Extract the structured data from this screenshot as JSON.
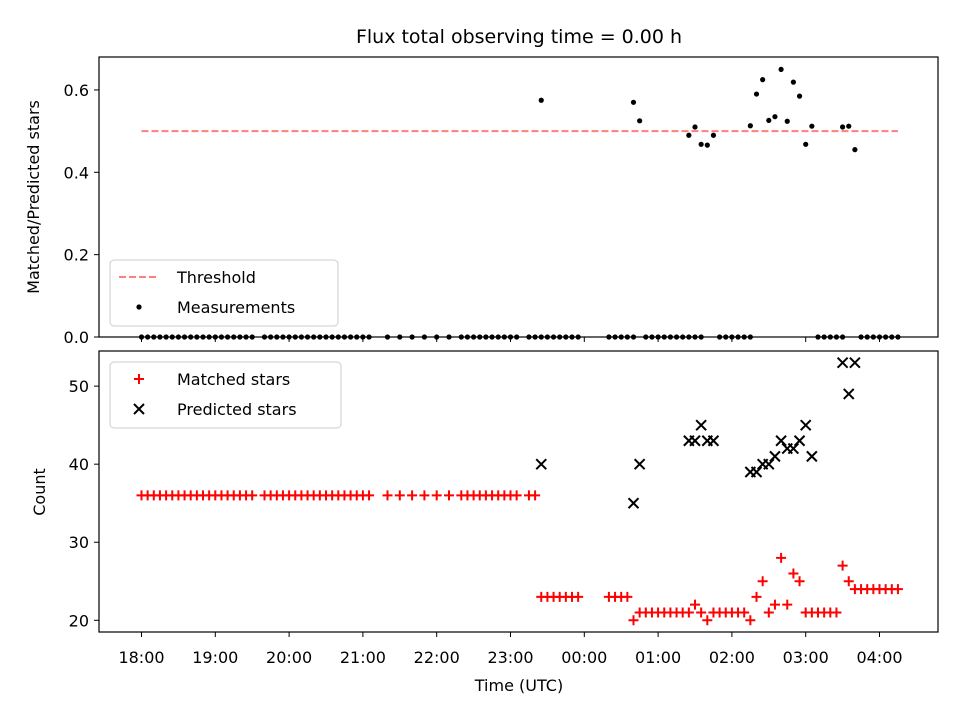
{
  "figure": {
    "title": "Flux total observing time = 0.00 h",
    "xlabel": "Time (UTC)",
    "xticks": [
      "18:00",
      "19:00",
      "20:00",
      "21:00",
      "22:00",
      "23:00",
      "00:00",
      "01:00",
      "02:00",
      "03:00",
      "04:00"
    ]
  },
  "chart_data": [
    {
      "type": "scatter",
      "panel": "top",
      "ylabel": "Matched/Predicted stars",
      "ylim": [
        0,
        0.68
      ],
      "yticks": [
        "0.0",
        "0.2",
        "0.4",
        "0.6"
      ],
      "ytick_values": [
        0,
        0.2,
        0.4,
        0.6
      ],
      "legend": {
        "placement": "lower-left",
        "entries": [
          "Threshold",
          "Measurements"
        ]
      },
      "threshold": {
        "name": "Threshold",
        "y": 0.5,
        "x_start": "18:00",
        "x_end": "04:15",
        "color": "#ff7f7f"
      },
      "series": [
        {
          "name": "Measurements",
          "color": "#000000",
          "zero_times": [
            "18:00",
            "18:05",
            "18:10",
            "18:15",
            "18:20",
            "18:25",
            "18:30",
            "18:35",
            "18:40",
            "18:45",
            "18:50",
            "18:55",
            "19:00",
            "19:05",
            "19:10",
            "19:15",
            "19:20",
            "19:25",
            "19:30",
            "19:40",
            "19:45",
            "19:50",
            "19:55",
            "20:00",
            "20:05",
            "20:10",
            "20:15",
            "20:20",
            "20:25",
            "20:30",
            "20:35",
            "20:40",
            "20:45",
            "20:50",
            "20:55",
            "21:00",
            "21:05",
            "21:20",
            "21:30",
            "21:40",
            "21:50",
            "22:00",
            "22:10",
            "22:20",
            "22:25",
            "22:30",
            "22:35",
            "22:40",
            "22:45",
            "22:50",
            "22:55",
            "23:00",
            "23:05",
            "23:15",
            "23:20",
            "23:25",
            "23:30",
            "23:35",
            "23:40",
            "23:45",
            "23:50",
            "23:55",
            "00:20",
            "00:25",
            "00:30",
            "00:35",
            "00:40",
            "00:50",
            "00:55",
            "01:00",
            "01:05",
            "01:10",
            "01:15",
            "01:20",
            "01:25",
            "01:30",
            "01:35",
            "01:50",
            "01:55",
            "02:00",
            "02:05",
            "02:10",
            "02:15",
            "03:10",
            "03:15",
            "03:20",
            "03:25",
            "03:30",
            "03:45",
            "03:50",
            "03:55",
            "04:00",
            "04:05",
            "04:10",
            "04:15"
          ],
          "points": [
            {
              "x": "23:25",
              "y": 0.575
            },
            {
              "x": "00:40",
              "y": 0.57
            },
            {
              "x": "00:45",
              "y": 0.525
            },
            {
              "x": "01:25",
              "y": 0.49
            },
            {
              "x": "01:30",
              "y": 0.51
            },
            {
              "x": "01:35",
              "y": 0.468
            },
            {
              "x": "01:40",
              "y": 0.466
            },
            {
              "x": "01:45",
              "y": 0.49
            },
            {
              "x": "02:15",
              "y": 0.513
            },
            {
              "x": "02:20",
              "y": 0.59
            },
            {
              "x": "02:25",
              "y": 0.625
            },
            {
              "x": "02:30",
              "y": 0.526
            },
            {
              "x": "02:35",
              "y": 0.535
            },
            {
              "x": "02:40",
              "y": 0.65
            },
            {
              "x": "02:45",
              "y": 0.524
            },
            {
              "x": "02:50",
              "y": 0.619
            },
            {
              "x": "02:55",
              "y": 0.585
            },
            {
              "x": "03:00",
              "y": 0.468
            },
            {
              "x": "03:05",
              "y": 0.512
            },
            {
              "x": "03:30",
              "y": 0.51
            },
            {
              "x": "03:35",
              "y": 0.512
            },
            {
              "x": "03:40",
              "y": 0.455
            }
          ]
        }
      ]
    },
    {
      "type": "scatter",
      "panel": "bottom",
      "ylabel": "Count",
      "ylim": [
        18.5,
        54.5
      ],
      "yticks": [
        "20",
        "30",
        "40",
        "50"
      ],
      "ytick_values": [
        20,
        30,
        40,
        50
      ],
      "legend": {
        "placement": "upper-left",
        "entries": [
          "Matched stars",
          "Predicted stars"
        ]
      },
      "series": [
        {
          "name": "Matched stars",
          "marker": "plus",
          "color": "#ff0000",
          "points": [
            {
              "x": "18:00",
              "y": 36
            },
            {
              "x": "18:05",
              "y": 36
            },
            {
              "x": "18:10",
              "y": 36
            },
            {
              "x": "18:15",
              "y": 36
            },
            {
              "x": "18:20",
              "y": 36
            },
            {
              "x": "18:25",
              "y": 36
            },
            {
              "x": "18:30",
              "y": 36
            },
            {
              "x": "18:35",
              "y": 36
            },
            {
              "x": "18:40",
              "y": 36
            },
            {
              "x": "18:45",
              "y": 36
            },
            {
              "x": "18:50",
              "y": 36
            },
            {
              "x": "18:55",
              "y": 36
            },
            {
              "x": "19:00",
              "y": 36
            },
            {
              "x": "19:05",
              "y": 36
            },
            {
              "x": "19:10",
              "y": 36
            },
            {
              "x": "19:15",
              "y": 36
            },
            {
              "x": "19:20",
              "y": 36
            },
            {
              "x": "19:25",
              "y": 36
            },
            {
              "x": "19:30",
              "y": 36
            },
            {
              "x": "19:40",
              "y": 36
            },
            {
              "x": "19:45",
              "y": 36
            },
            {
              "x": "19:50",
              "y": 36
            },
            {
              "x": "19:55",
              "y": 36
            },
            {
              "x": "20:00",
              "y": 36
            },
            {
              "x": "20:05",
              "y": 36
            },
            {
              "x": "20:10",
              "y": 36
            },
            {
              "x": "20:15",
              "y": 36
            },
            {
              "x": "20:20",
              "y": 36
            },
            {
              "x": "20:25",
              "y": 36
            },
            {
              "x": "20:30",
              "y": 36
            },
            {
              "x": "20:35",
              "y": 36
            },
            {
              "x": "20:40",
              "y": 36
            },
            {
              "x": "20:45",
              "y": 36
            },
            {
              "x": "20:50",
              "y": 36
            },
            {
              "x": "20:55",
              "y": 36
            },
            {
              "x": "21:00",
              "y": 36
            },
            {
              "x": "21:05",
              "y": 36
            },
            {
              "x": "21:20",
              "y": 36
            },
            {
              "x": "21:30",
              "y": 36
            },
            {
              "x": "21:40",
              "y": 36
            },
            {
              "x": "21:50",
              "y": 36
            },
            {
              "x": "22:00",
              "y": 36
            },
            {
              "x": "22:10",
              "y": 36
            },
            {
              "x": "22:20",
              "y": 36
            },
            {
              "x": "22:25",
              "y": 36
            },
            {
              "x": "22:30",
              "y": 36
            },
            {
              "x": "22:35",
              "y": 36
            },
            {
              "x": "22:40",
              "y": 36
            },
            {
              "x": "22:45",
              "y": 36
            },
            {
              "x": "22:50",
              "y": 36
            },
            {
              "x": "22:55",
              "y": 36
            },
            {
              "x": "23:00",
              "y": 36
            },
            {
              "x": "23:05",
              "y": 36
            },
            {
              "x": "23:15",
              "y": 36
            },
            {
              "x": "23:20",
              "y": 36
            },
            {
              "x": "23:25",
              "y": 23
            },
            {
              "x": "23:30",
              "y": 23
            },
            {
              "x": "23:35",
              "y": 23
            },
            {
              "x": "23:40",
              "y": 23
            },
            {
              "x": "23:45",
              "y": 23
            },
            {
              "x": "23:50",
              "y": 23
            },
            {
              "x": "23:55",
              "y": 23
            },
            {
              "x": "00:20",
              "y": 23
            },
            {
              "x": "00:25",
              "y": 23
            },
            {
              "x": "00:30",
              "y": 23
            },
            {
              "x": "00:35",
              "y": 23
            },
            {
              "x": "00:40",
              "y": 20
            },
            {
              "x": "00:45",
              "y": 21
            },
            {
              "x": "00:50",
              "y": 21
            },
            {
              "x": "00:55",
              "y": 21
            },
            {
              "x": "01:00",
              "y": 21
            },
            {
              "x": "01:05",
              "y": 21
            },
            {
              "x": "01:10",
              "y": 21
            },
            {
              "x": "01:15",
              "y": 21
            },
            {
              "x": "01:20",
              "y": 21
            },
            {
              "x": "01:25",
              "y": 21
            },
            {
              "x": "01:30",
              "y": 22
            },
            {
              "x": "01:35",
              "y": 21
            },
            {
              "x": "01:40",
              "y": 20
            },
            {
              "x": "01:45",
              "y": 21
            },
            {
              "x": "01:50",
              "y": 21
            },
            {
              "x": "01:55",
              "y": 21
            },
            {
              "x": "02:00",
              "y": 21
            },
            {
              "x": "02:05",
              "y": 21
            },
            {
              "x": "02:10",
              "y": 21
            },
            {
              "x": "02:15",
              "y": 20
            },
            {
              "x": "02:20",
              "y": 23
            },
            {
              "x": "02:25",
              "y": 25
            },
            {
              "x": "02:30",
              "y": 21
            },
            {
              "x": "02:35",
              "y": 22
            },
            {
              "x": "02:40",
              "y": 28
            },
            {
              "x": "02:45",
              "y": 22
            },
            {
              "x": "02:50",
              "y": 26
            },
            {
              "x": "02:55",
              "y": 25
            },
            {
              "x": "03:00",
              "y": 21
            },
            {
              "x": "03:05",
              "y": 21
            },
            {
              "x": "03:10",
              "y": 21
            },
            {
              "x": "03:15",
              "y": 21
            },
            {
              "x": "03:20",
              "y": 21
            },
            {
              "x": "03:25",
              "y": 21
            },
            {
              "x": "03:30",
              "y": 27
            },
            {
              "x": "03:35",
              "y": 25
            },
            {
              "x": "03:40",
              "y": 24
            },
            {
              "x": "03:45",
              "y": 24
            },
            {
              "x": "03:50",
              "y": 24
            },
            {
              "x": "03:55",
              "y": 24
            },
            {
              "x": "04:00",
              "y": 24
            },
            {
              "x": "04:05",
              "y": 24
            },
            {
              "x": "04:10",
              "y": 24
            },
            {
              "x": "04:15",
              "y": 24
            }
          ]
        },
        {
          "name": "Predicted stars",
          "marker": "x",
          "color": "#000000",
          "points": [
            {
              "x": "23:25",
              "y": 40
            },
            {
              "x": "00:40",
              "y": 35
            },
            {
              "x": "00:45",
              "y": 40
            },
            {
              "x": "01:25",
              "y": 43
            },
            {
              "x": "01:30",
              "y": 43
            },
            {
              "x": "01:35",
              "y": 45
            },
            {
              "x": "01:40",
              "y": 43
            },
            {
              "x": "01:45",
              "y": 43
            },
            {
              "x": "02:15",
              "y": 39
            },
            {
              "x": "02:20",
              "y": 39
            },
            {
              "x": "02:25",
              "y": 40
            },
            {
              "x": "02:30",
              "y": 40
            },
            {
              "x": "02:35",
              "y": 41
            },
            {
              "x": "02:40",
              "y": 43
            },
            {
              "x": "02:45",
              "y": 42
            },
            {
              "x": "02:50",
              "y": 42
            },
            {
              "x": "02:55",
              "y": 43
            },
            {
              "x": "03:00",
              "y": 45
            },
            {
              "x": "03:05",
              "y": 41
            },
            {
              "x": "03:30",
              "y": 53
            },
            {
              "x": "03:35",
              "y": 49
            },
            {
              "x": "03:40",
              "y": 53
            }
          ]
        }
      ]
    }
  ]
}
